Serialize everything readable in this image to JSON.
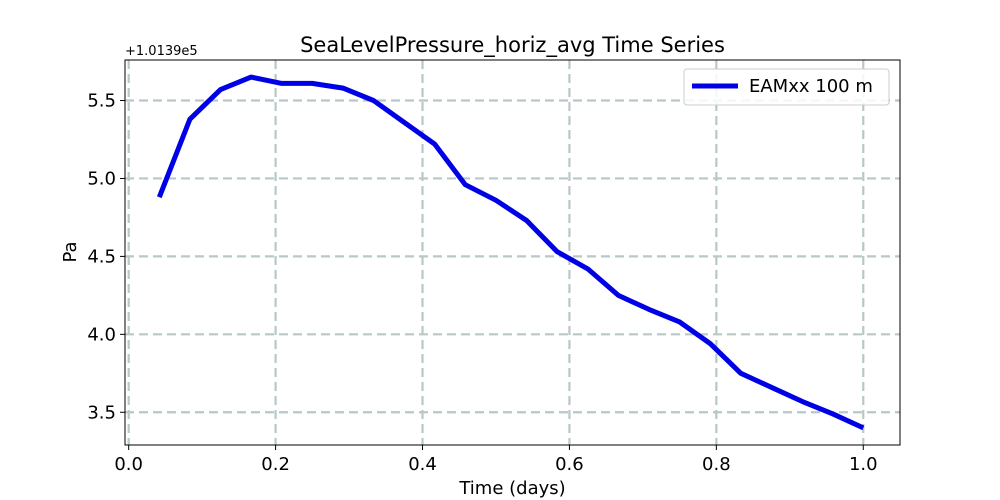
{
  "chart_data": {
    "type": "line",
    "title": "SeaLevelPressure_horiz_avg Time Series",
    "xlabel": "Time (days)",
    "ylabel": "Pa",
    "y_offset_label": "+1.0139e5",
    "xlim": [
      -0.005,
      1.05
    ],
    "ylim": [
      3.29,
      5.76
    ],
    "x_ticks": [
      0.0,
      0.2,
      0.4,
      0.6,
      0.8,
      1.0
    ],
    "x_tick_labels": [
      "0.0",
      "0.2",
      "0.4",
      "0.6",
      "0.8",
      "1.0"
    ],
    "y_ticks": [
      3.5,
      4.0,
      4.5,
      5.0,
      5.5
    ],
    "y_tick_labels": [
      "3.5",
      "4.0",
      "4.5",
      "5.0",
      "5.5"
    ],
    "grid": true,
    "legend_position": "top-right",
    "colors": {
      "series": "#0000e6",
      "grid": "#b8c8c8"
    },
    "series": [
      {
        "name": "EAMxx 100 m",
        "x": [
          0.0417,
          0.0833,
          0.125,
          0.1667,
          0.2083,
          0.25,
          0.2917,
          0.3333,
          0.375,
          0.4167,
          0.4583,
          0.5,
          0.5417,
          0.5833,
          0.625,
          0.6667,
          0.7083,
          0.75,
          0.7917,
          0.8333,
          0.875,
          0.9167,
          0.9583,
          1.0
        ],
        "y": [
          4.88,
          5.38,
          5.57,
          5.65,
          5.61,
          5.61,
          5.58,
          5.5,
          5.36,
          5.22,
          4.96,
          4.86,
          4.73,
          4.53,
          4.42,
          4.25,
          4.16,
          4.08,
          3.94,
          3.75,
          3.66,
          3.57,
          3.49,
          3.4
        ]
      }
    ]
  }
}
